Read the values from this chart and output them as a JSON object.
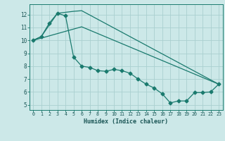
{
  "xlabel": "Humidex (Indice chaleur)",
  "bg_color": "#cce8e8",
  "grid_color": "#aad0d0",
  "line_color": "#1a7a6e",
  "xlim": [
    -0.5,
    23.5
  ],
  "ylim": [
    4.6,
    12.8
  ],
  "xticks": [
    0,
    1,
    2,
    3,
    4,
    5,
    6,
    7,
    8,
    9,
    10,
    11,
    12,
    13,
    14,
    15,
    16,
    17,
    18,
    19,
    20,
    21,
    22,
    23
  ],
  "yticks": [
    5,
    6,
    7,
    8,
    9,
    10,
    11,
    12
  ],
  "line1_x": [
    0,
    1,
    2,
    3,
    4,
    5,
    6,
    7,
    8,
    9,
    10,
    11,
    12,
    13,
    14,
    15,
    16,
    17,
    18,
    19,
    20,
    21,
    22,
    23
  ],
  "line1_y": [
    10.0,
    10.3,
    11.35,
    12.1,
    11.9,
    8.7,
    8.0,
    7.9,
    7.65,
    7.6,
    7.75,
    7.65,
    7.45,
    7.0,
    6.6,
    6.3,
    5.85,
    5.15,
    5.3,
    5.3,
    5.95,
    5.95,
    6.0,
    6.6
  ],
  "line2_x": [
    0,
    1,
    3,
    5,
    6,
    23
  ],
  "line2_y": [
    10.0,
    10.3,
    12.1,
    12.25,
    12.3,
    6.6
  ],
  "line3_x": [
    0,
    6,
    23
  ],
  "line3_y": [
    10.0,
    11.05,
    6.6
  ]
}
